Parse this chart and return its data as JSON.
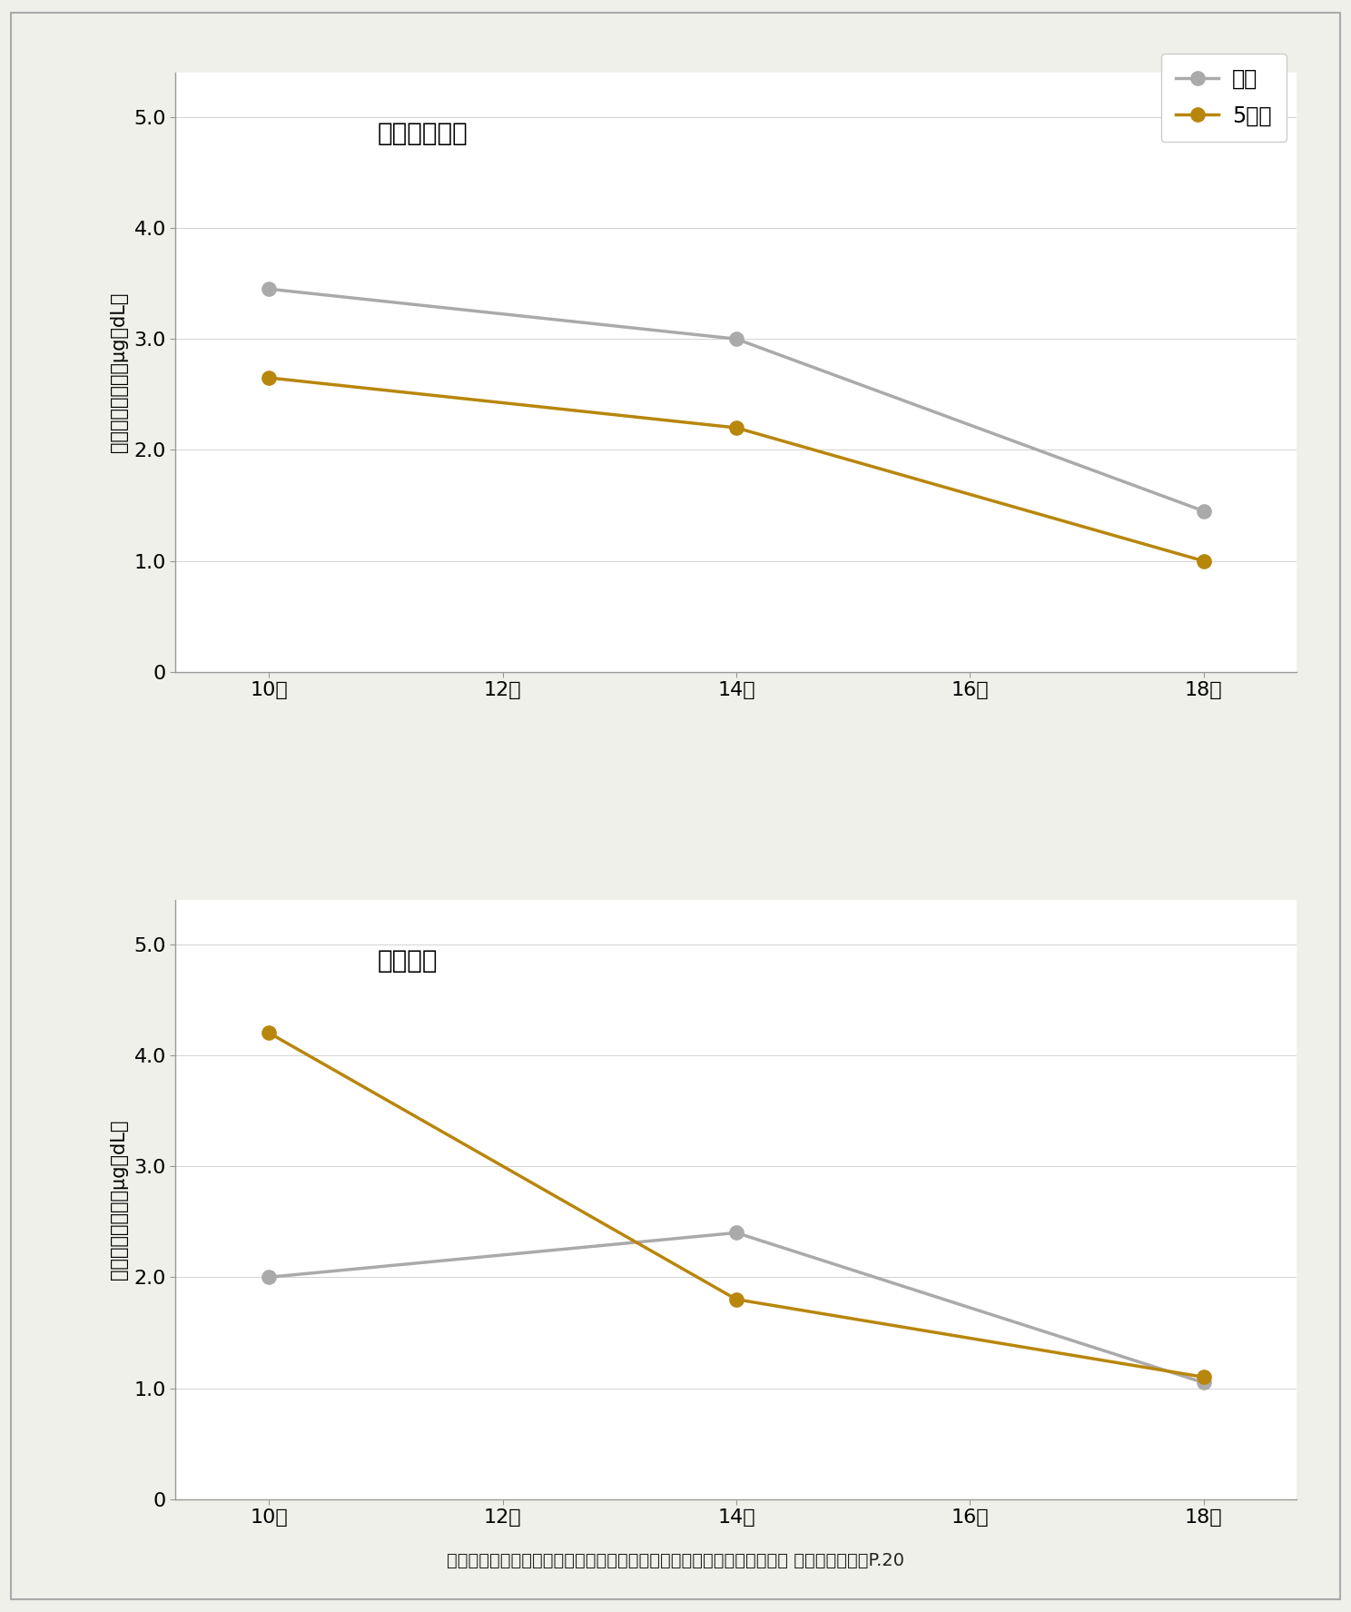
{
  "top_chart": {
    "title": "白色メラミン",
    "series_mae": {
      "x": [
        10,
        14,
        18
      ],
      "y": [
        3.45,
        3.0,
        1.45
      ],
      "color": "#aaaaaa",
      "label": "前値"
    },
    "series_5day": {
      "x": [
        10,
        14,
        18
      ],
      "y": [
        2.65,
        2.2,
        1.0
      ],
      "color": "#B8860B",
      "label": "5日目"
    }
  },
  "bottom_chart": {
    "title": "クリ単板",
    "series_mae": {
      "x": [
        10,
        14,
        18
      ],
      "y": [
        2.0,
        2.4,
        1.05
      ],
      "color": "#aaaaaa",
      "label": "前値"
    },
    "series_5day": {
      "x": [
        10,
        14,
        18
      ],
      "y": [
        4.2,
        1.8,
        1.1
      ],
      "color": "#B8860B",
      "label": "5日目"
    }
  },
  "x_ticks": [
    10,
    12,
    14,
    16,
    18
  ],
  "x_tick_labels": [
    "10時",
    "12時",
    "14時",
    "16時",
    "18時"
  ],
  "ylim": [
    0,
    5.4
  ],
  "y_ticks": [
    0,
    1.0,
    2.0,
    3.0,
    4.0,
    5.0
  ],
  "y_tick_labels": [
    "0",
    "1.0",
    "2.0",
    "3.0",
    "4.0",
    "5.0"
  ],
  "ylabel_chars": [
    "コ",
    "ル",
    "チ",
    "ゾ",
    "ー",
    "ル",
    "値",
    "（",
    "μg",
    "／",
    "dL",
    "）"
  ],
  "citation": "》出典「（一社）日本住宅・木材技術センター編「内装木質化等の効果 実証事例集」、P.20",
  "background_color": "#f0f0eb",
  "plot_bg_color": "#ffffff",
  "line_width": 2.5,
  "marker_size": 11,
  "gray_color": "#aaaaaa",
  "gold_color": "#B8860B",
  "title_fontsize": 20,
  "tick_fontsize": 16,
  "ylabel_fontsize": 15,
  "legend_fontsize": 17,
  "citation_fontsize": 14
}
